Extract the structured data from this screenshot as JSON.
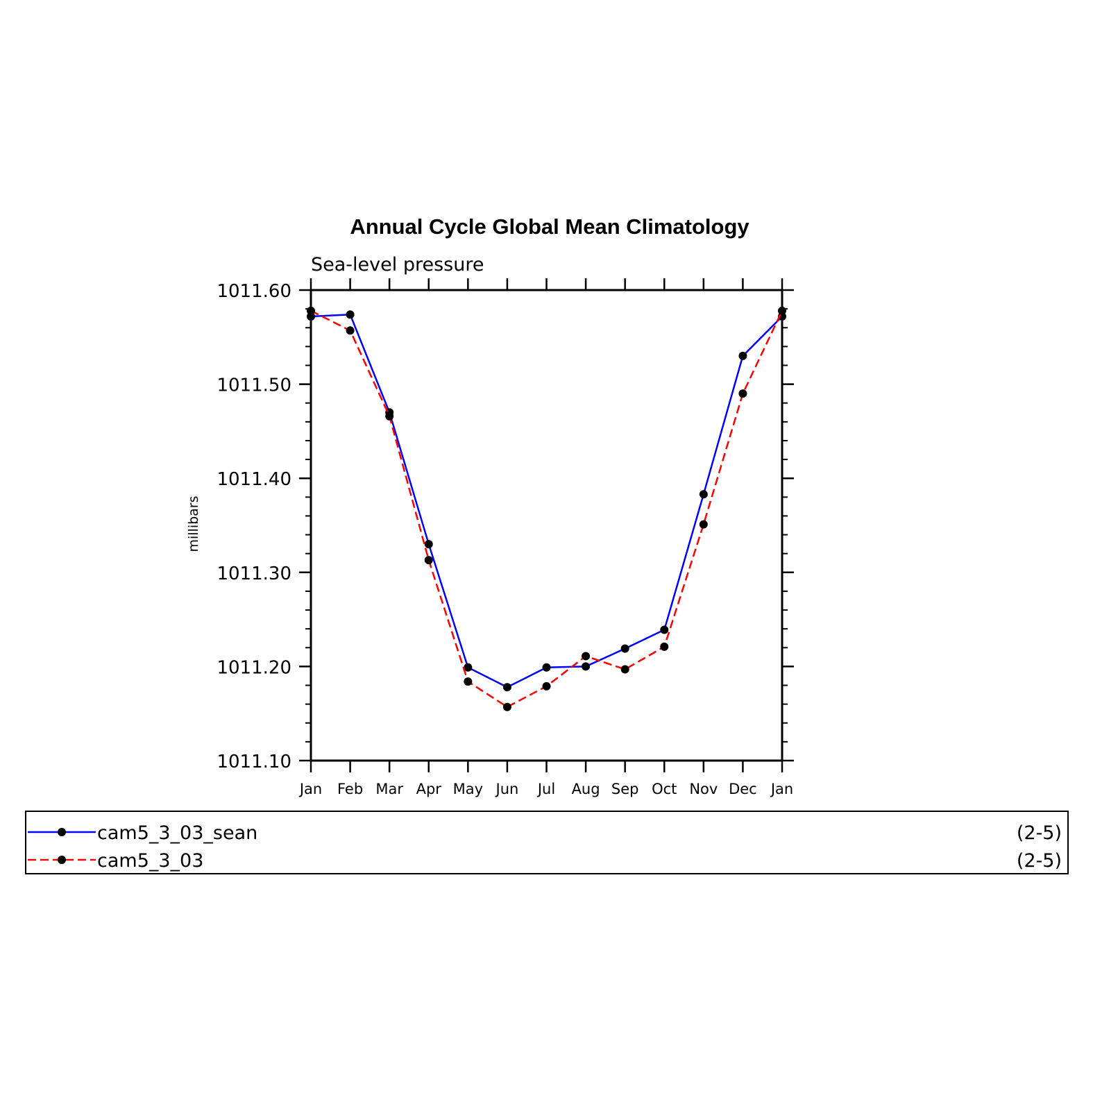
{
  "chart_data": {
    "type": "line",
    "title": "Annual Cycle Global Mean Climatology",
    "subtitle": "Sea-level pressure",
    "xlabel": "",
    "ylabel": "millibars",
    "categories": [
      "Jan",
      "Feb",
      "Mar",
      "Apr",
      "May",
      "Jun",
      "Jul",
      "Aug",
      "Sep",
      "Oct",
      "Nov",
      "Dec",
      "Jan"
    ],
    "ylim": [
      1011.1,
      1011.6
    ],
    "yticks": [
      1011.1,
      1011.2,
      1011.3,
      1011.4,
      1011.5,
      1011.6
    ],
    "ytick_labels": [
      "1011.10",
      "1011.20",
      "1011.30",
      "1011.40",
      "1011.50",
      "1011.60"
    ],
    "grid": false,
    "legend_position": "bottom",
    "series": [
      {
        "name": "cam5_3_03_sean",
        "period": "(2-5)",
        "color": "#0000ff",
        "dash": "solid",
        "values": [
          1011.572,
          1011.574,
          1011.47,
          1011.33,
          1011.199,
          1011.178,
          1011.199,
          1011.2,
          1011.219,
          1011.239,
          1011.383,
          1011.53,
          1011.572
        ]
      },
      {
        "name": "cam5_3_03",
        "period": "(2-5)",
        "color": "#ff0000",
        "dash": "dashed",
        "values": [
          1011.578,
          1011.557,
          1011.466,
          1011.313,
          1011.184,
          1011.157,
          1011.179,
          1011.211,
          1011.197,
          1011.221,
          1011.351,
          1011.49,
          1011.578
        ]
      }
    ]
  }
}
